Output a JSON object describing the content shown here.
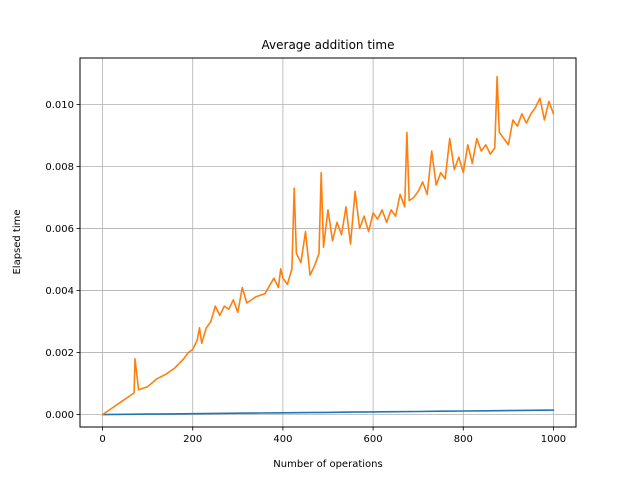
{
  "chart_data": {
    "type": "line",
    "title": "Average addition time",
    "xlabel": "Number of operations",
    "ylabel": "Elapsed time",
    "xlim": [
      -50,
      1050
    ],
    "ylim": [
      -0.0004,
      0.0115
    ],
    "grid": true,
    "xticks": [
      0,
      200,
      400,
      600,
      800,
      1000
    ],
    "xtick_labels": [
      "0",
      "200",
      "400",
      "600",
      "800",
      "1000"
    ],
    "yticks": [
      0,
      0.002,
      0.004,
      0.006,
      0.008,
      0.01
    ],
    "ytick_labels": [
      "0.000",
      "0.002",
      "0.004",
      "0.006",
      "0.008",
      "0.010"
    ],
    "series": [
      {
        "color": "#1f77b4",
        "x": [
          0,
          50,
          100,
          150,
          200,
          250,
          300,
          350,
          400,
          450,
          500,
          550,
          600,
          650,
          700,
          750,
          800,
          850,
          900,
          950,
          1000
        ],
        "y": [
          0.0,
          8e-06,
          1.5e-05,
          2.2e-05,
          3e-05,
          3.8e-05,
          4.5e-05,
          5e-05,
          5.8e-05,
          6.5e-05,
          7.2e-05,
          8e-05,
          8.8e-05,
          9.5e-05,
          0.0001,
          0.000108,
          0.000115,
          0.000122,
          0.00013,
          0.000138,
          0.000145
        ]
      },
      {
        "color": "#ff7f0e",
        "x": [
          0,
          20,
          40,
          60,
          70,
          72,
          80,
          100,
          120,
          140,
          160,
          180,
          190,
          200,
          210,
          215,
          220,
          230,
          240,
          250,
          260,
          270,
          280,
          290,
          300,
          310,
          320,
          340,
          360,
          380,
          390,
          395,
          400,
          410,
          420,
          425,
          430,
          440,
          450,
          460,
          470,
          480,
          485,
          490,
          500,
          510,
          520,
          530,
          540,
          550,
          560,
          570,
          580,
          590,
          600,
          610,
          620,
          630,
          640,
          650,
          660,
          670,
          675,
          680,
          690,
          700,
          710,
          720,
          730,
          740,
          750,
          760,
          770,
          780,
          790,
          800,
          810,
          820,
          830,
          840,
          850,
          860,
          870,
          875,
          880,
          890,
          900,
          910,
          920,
          930,
          940,
          950,
          960,
          970,
          980,
          990,
          1000
        ],
        "y": [
          0.0,
          0.0002,
          0.0004,
          0.0006,
          0.0007,
          0.0018,
          0.0008,
          0.0009,
          0.00115,
          0.0013,
          0.0015,
          0.0018,
          0.002,
          0.0021,
          0.0024,
          0.0028,
          0.0023,
          0.0028,
          0.003,
          0.0035,
          0.0032,
          0.0035,
          0.0034,
          0.0037,
          0.0033,
          0.0041,
          0.0036,
          0.0038,
          0.0039,
          0.0044,
          0.0041,
          0.0047,
          0.0044,
          0.0042,
          0.0047,
          0.0073,
          0.0052,
          0.0049,
          0.0059,
          0.0045,
          0.0048,
          0.0052,
          0.0078,
          0.0054,
          0.0066,
          0.0056,
          0.0062,
          0.0058,
          0.0067,
          0.0055,
          0.0072,
          0.006,
          0.0064,
          0.0059,
          0.0065,
          0.0063,
          0.0066,
          0.0062,
          0.0066,
          0.0064,
          0.0071,
          0.0067,
          0.0091,
          0.0069,
          0.007,
          0.0072,
          0.0075,
          0.0071,
          0.0085,
          0.0074,
          0.0078,
          0.0076,
          0.0089,
          0.0079,
          0.0083,
          0.0078,
          0.0087,
          0.0081,
          0.0089,
          0.0085,
          0.0087,
          0.0084,
          0.0086,
          0.0109,
          0.0091,
          0.0089,
          0.0087,
          0.0095,
          0.0093,
          0.0097,
          0.0094,
          0.0097,
          0.0099,
          0.0102,
          0.0095,
          0.0101,
          0.0097
        ]
      }
    ]
  }
}
